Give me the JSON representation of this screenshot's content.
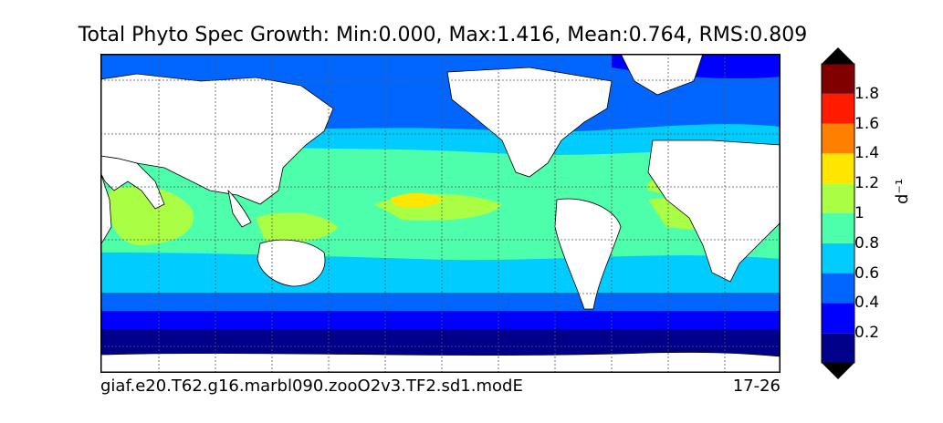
{
  "title": "Total Phyto Spec Growth: Min:0.000, Max:1.416, Mean:0.764, RMS:0.809",
  "caption_left": "giaf.e20.T62.g16.marbl090.zooO2v3.TF2.sd1.modE",
  "caption_right": "17-26",
  "colorbar": {
    "unit": "d⁻¹",
    "ticks": [
      "0.2",
      "0.4",
      "0.6",
      "0.8",
      "1",
      "1.2",
      "1.4",
      "1.6",
      "1.8"
    ],
    "levels": [
      {
        "range": "0-0.2",
        "color": "#00008b"
      },
      {
        "range": "0.2-0.4",
        "color": "#0000ff"
      },
      {
        "range": "0.4-0.6",
        "color": "#0066ff"
      },
      {
        "range": "0.6-0.8",
        "color": "#00ccff"
      },
      {
        "range": "0.8-1.0",
        "color": "#4dffaa"
      },
      {
        "range": "1.0-1.2",
        "color": "#aaff44"
      },
      {
        "range": "1.2-1.4",
        "color": "#ffe600"
      },
      {
        "range": "1.4-1.6",
        "color": "#ff7f00"
      },
      {
        "range": "1.6-1.8",
        "color": "#ff1a00"
      },
      {
        "range": "1.8-2.0",
        "color": "#800000"
      }
    ],
    "extend_colors": {
      "low": "#000000",
      "high": "#000000"
    }
  },
  "colors": {
    "land": "#ffffff",
    "grid": "#555555"
  }
}
